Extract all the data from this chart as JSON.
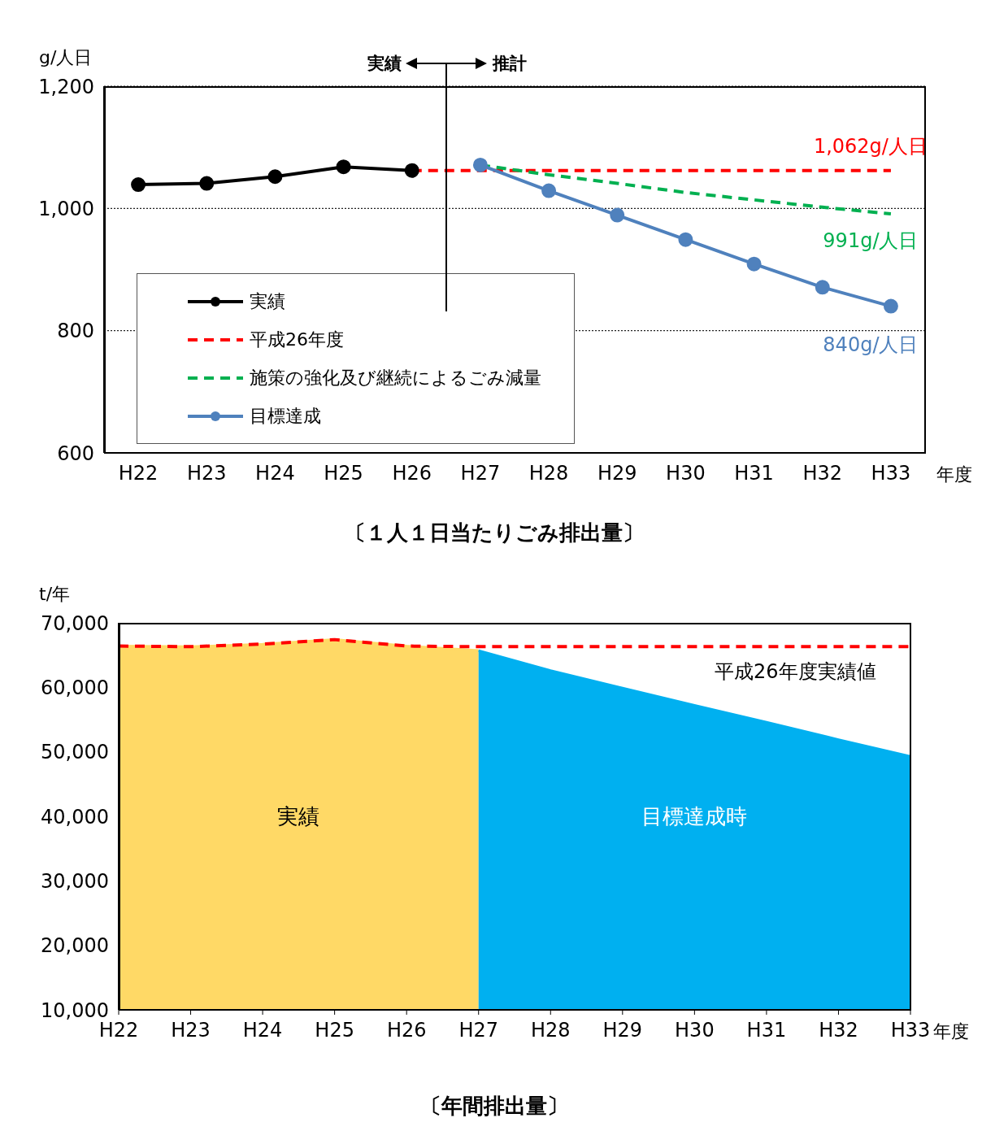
{
  "chart_data": [
    {
      "type": "line",
      "title": "〔１人１日当たりごみ排出量〕",
      "ylabel": "g/人日",
      "xlabel": "年度",
      "categories": [
        "H22",
        "H23",
        "H24",
        "H25",
        "H26",
        "H27",
        "H28",
        "H29",
        "H30",
        "H31",
        "H32",
        "H33"
      ],
      "series": [
        {
          "name": "実績",
          "color": "#000000",
          "marker": "circle",
          "line_style": "solid",
          "values": [
            1039,
            1041,
            1052,
            1068,
            1062,
            null,
            null,
            null,
            null,
            null,
            null,
            null
          ]
        },
        {
          "name": "平成26年度",
          "color": "#ff0000",
          "marker": "none",
          "line_style": "dashed",
          "values": [
            null,
            null,
            null,
            null,
            1062,
            1062,
            1062,
            1062,
            1062,
            1062,
            1062,
            1062
          ]
        },
        {
          "name": "施策の強化及び継続によるごみ減量",
          "color": "#00b050",
          "marker": "none",
          "line_style": "dashed",
          "values": [
            null,
            null,
            null,
            null,
            null,
            1071,
            1055,
            1041,
            1026,
            1014,
            1002,
            991
          ]
        },
        {
          "name": "目標達成",
          "color": "#4f81bd",
          "marker": "circle",
          "line_style": "solid",
          "values": [
            null,
            null,
            null,
            null,
            null,
            1071,
            1029,
            989,
            949,
            909,
            871,
            840
          ]
        }
      ],
      "ylim": [
        600,
        1200
      ],
      "yticks": [
        {
          "value": 600,
          "label": "600"
        },
        {
          "value": 800,
          "label": "800"
        },
        {
          "value": 1000,
          "label": "1,000"
        },
        {
          "value": 1200,
          "label": "1,200"
        }
      ],
      "grid": "y",
      "legend": "bottom left",
      "annotations": [
        "実績",
        "推計",
        {
          "text": "1,062g/人日",
          "x": "H33",
          "y": 1062
        },
        {
          "text": "991g/人日",
          "x": "H33",
          "y": 991
        },
        {
          "text": "840g/人日",
          "x": "H33",
          "y": 840
        }
      ]
    },
    {
      "type": "area",
      "title": "〔年間排出量〕",
      "ylabel": "t/年",
      "xlabel": "年度",
      "categories": [
        "H22",
        "H23",
        "H24",
        "H25",
        "H26",
        "H27",
        "H28",
        "H29",
        "H30",
        "H31",
        "H32",
        "H33"
      ],
      "series": [
        {
          "name": "実績",
          "color": "#ffd966",
          "values": [
            66400,
            66300,
            66700,
            67400,
            66400,
            65700,
            null,
            null,
            null,
            null,
            null,
            null
          ]
        },
        {
          "name": "目標達成時",
          "color": "#00b0f0",
          "values": [
            null,
            null,
            null,
            null,
            null,
            65700,
            62600,
            59900,
            57200,
            54600,
            51900,
            49300
          ]
        },
        {
          "name": "平成26年度実績値",
          "type": "line",
          "color": "#ff0000",
          "line_style": "dashed",
          "values": [
            66400,
            66300,
            66700,
            67400,
            66400,
            66300,
            66300,
            66300,
            66300,
            66300,
            66300,
            66300
          ]
        }
      ],
      "ylim": [
        10000,
        70000
      ],
      "yticks": [
        {
          "value": 10000,
          "label": "10,000"
        },
        {
          "value": 20000,
          "label": "20,000"
        },
        {
          "value": 30000,
          "label": "30,000"
        },
        {
          "value": 40000,
          "label": "40,000"
        },
        {
          "value": 50000,
          "label": "50,000"
        },
        {
          "value": 60000,
          "label": "60,000"
        },
        {
          "value": 70000,
          "label": "70,000"
        }
      ],
      "grid": false,
      "legend": false
    }
  ]
}
